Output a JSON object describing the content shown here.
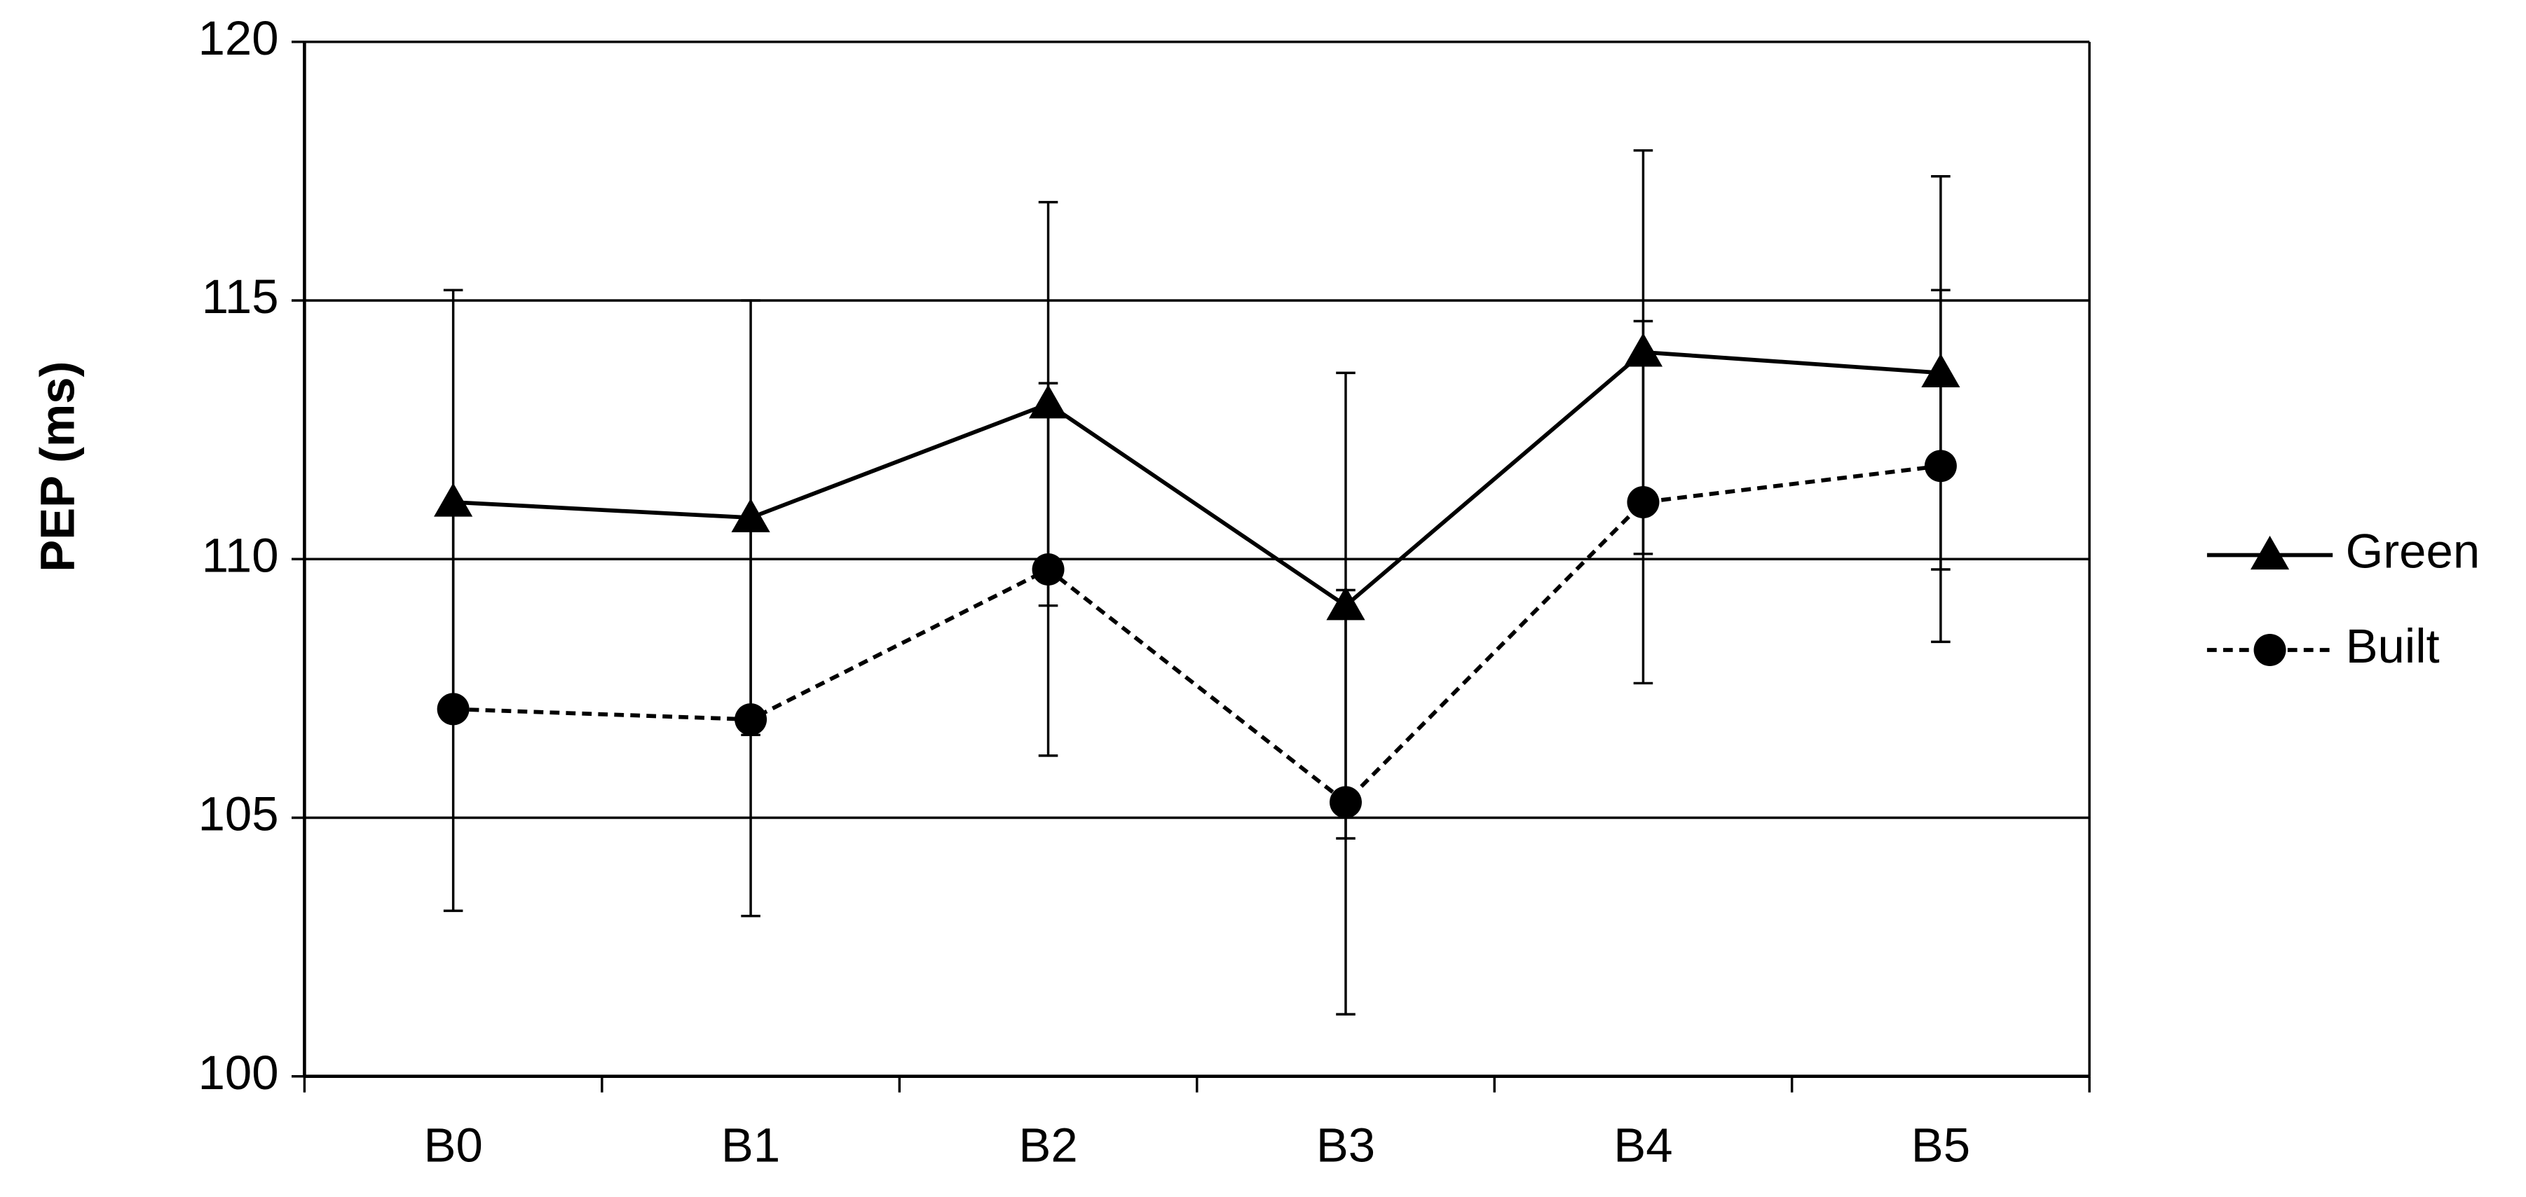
{
  "chart_data": {
    "type": "line",
    "y_label": "PEP (ms)",
    "categories": [
      "B0",
      "B1",
      "B2",
      "B3",
      "B4",
      "B5"
    ],
    "series": [
      {
        "name": "Green",
        "color": "#000000",
        "marker": "triangle",
        "linestyle": "solid",
        "values": [
          111.1,
          110.8,
          113.0,
          109.1,
          114.0,
          113.6
        ],
        "errors": [
          4.1,
          4.2,
          3.9,
          4.5,
          3.9,
          3.8
        ]
      },
      {
        "name": "Built",
        "color": "#000000",
        "marker": "circle",
        "linestyle": "dashed",
        "values": [
          107.1,
          106.9,
          109.8,
          105.3,
          111.1,
          111.8
        ],
        "errors": [
          3.9,
          3.8,
          3.6,
          4.1,
          3.5,
          3.4
        ]
      }
    ],
    "ylim": [
      100,
      120
    ],
    "yticks": [
      100,
      105,
      110,
      115,
      120
    ],
    "grid": true,
    "legend": "right"
  }
}
